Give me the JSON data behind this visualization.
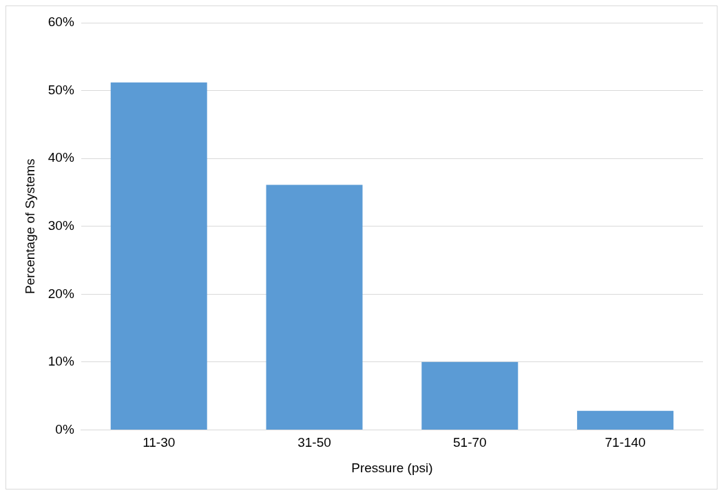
{
  "chart_data": {
    "type": "bar",
    "xlabel": "Pressure (psi)",
    "ylabel": "Percentage of Systems",
    "categories": [
      "11-30",
      "31-50",
      "51-70",
      "71-140"
    ],
    "values": [
      51.2,
      36.1,
      10.0,
      2.8
    ],
    "color": "#5b9bd5",
    "ylim": [
      0,
      60
    ],
    "yticks": [
      {
        "value": 0,
        "label": "0%"
      },
      {
        "value": 10,
        "label": "10%"
      },
      {
        "value": 20,
        "label": "20%"
      },
      {
        "value": 30,
        "label": "30%"
      },
      {
        "value": 40,
        "label": "40%"
      },
      {
        "value": 50,
        "label": "50%"
      },
      {
        "value": 60,
        "label": "60%"
      }
    ],
    "grid": "y",
    "legend": false
  }
}
